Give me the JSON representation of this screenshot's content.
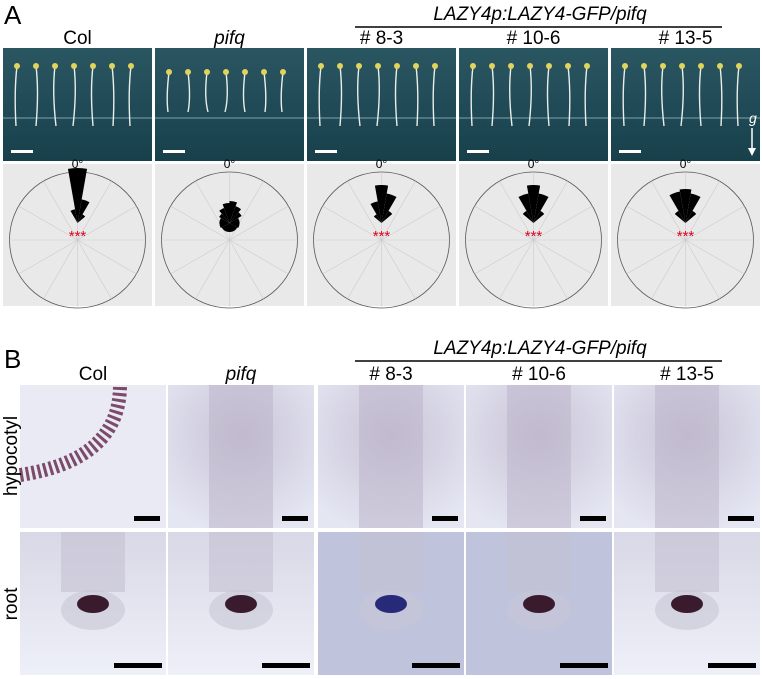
{
  "panel_a": {
    "label": "A",
    "group_header": "LAZY4p:LAZY4-GFP/pifq",
    "columns": [
      {
        "label": "Col",
        "angle_label": "0°",
        "significance": "***"
      },
      {
        "label": "pifq",
        "angle_label": "0°"
      },
      {
        "label": "# 8-3",
        "angle_label": "0°",
        "significance": "***"
      },
      {
        "label": "# 10-6",
        "angle_label": "0°",
        "significance": "***"
      },
      {
        "label": "# 13-5",
        "angle_label": "0°",
        "significance": "***"
      }
    ],
    "gravity_label": "g"
  },
  "panel_b": {
    "label": "B",
    "group_header": "LAZY4p:LAZY4-GFP/pifq",
    "columns": [
      "Col",
      "pifq",
      "# 8-3",
      "# 10-6",
      "# 13-5"
    ],
    "rows": [
      "hypocotyl",
      "root"
    ]
  }
}
